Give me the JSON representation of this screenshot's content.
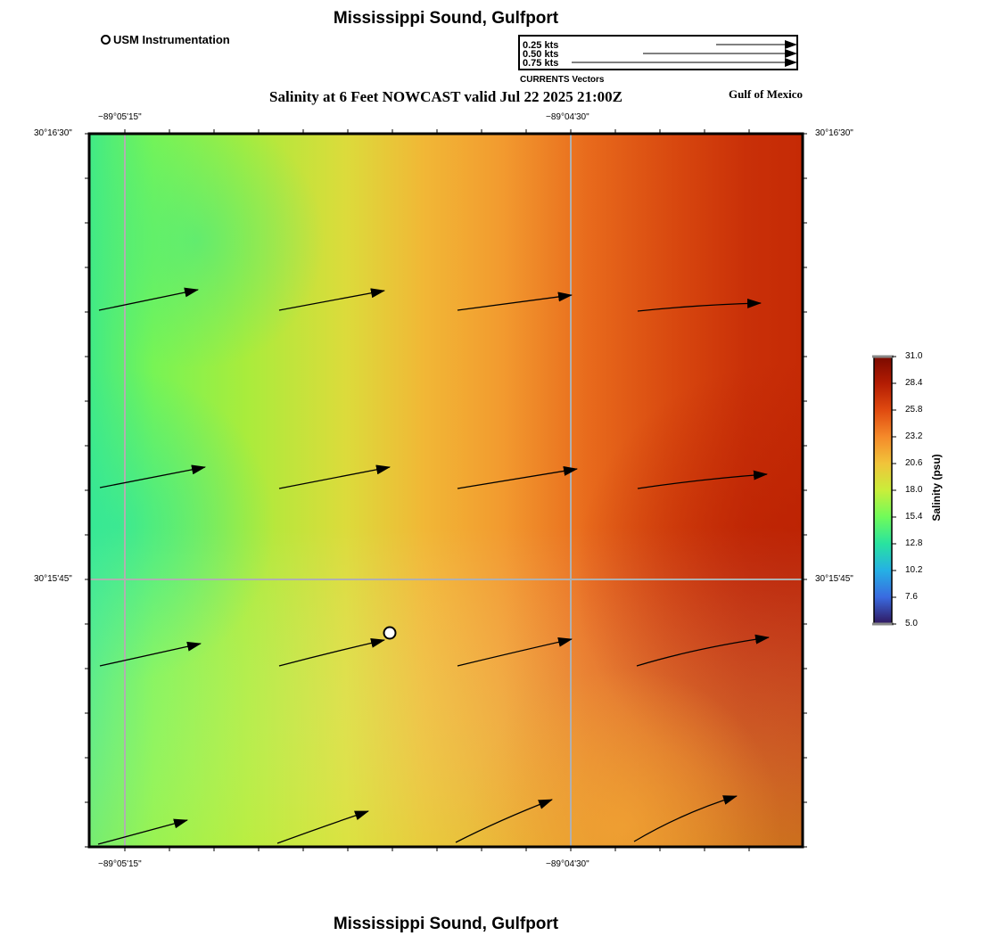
{
  "title": "Mississippi Sound, Gulfport",
  "footer_title": "Mississippi Sound, Gulfport",
  "subtitle": "Salinity at 6 Feet NOWCAST valid Jul 22 2025 21:00Z",
  "region_label": "Gulf of Mexico",
  "station_legend": {
    "label": "USM Instrumentation",
    "icon": "station-circle-icon"
  },
  "vector_legend": {
    "caption": "CURRENTS Vectors",
    "items": [
      {
        "label": "0.25 kts",
        "speed": 0.25
      },
      {
        "label": "0.50 kts",
        "speed": 0.5
      },
      {
        "label": "0.75 kts",
        "speed": 0.75
      }
    ]
  },
  "axes": {
    "top_labels": [
      "−89°05'15\"",
      "−89°04'30\""
    ],
    "bottom_labels": [
      "−89°05'15\"",
      "−89°04'30\""
    ],
    "left_labels": [
      "30°16'30\"",
      "30°15'45\""
    ],
    "right_labels": [
      "30°16'30\"",
      "30°15'45\""
    ]
  },
  "colorbar": {
    "title": "Salinity (psu)",
    "min": 5.0,
    "max": 31.0,
    "ticks": [
      "31.0",
      "28.4",
      "25.8",
      "23.2",
      "20.6",
      "18.0",
      "15.4",
      "12.8",
      "10.2",
      "7.6",
      "5.0"
    ],
    "colors": [
      "#8a0f00",
      "#c42a05",
      "#e75b16",
      "#f7a035",
      "#e5d43a",
      "#b7ec3c",
      "#5dfb64",
      "#27dca7",
      "#24a3e6",
      "#3b62d8",
      "#2a1f5a"
    ]
  },
  "station": {
    "name": "USM Instrumentation",
    "icon": "station-circle-icon"
  }
}
